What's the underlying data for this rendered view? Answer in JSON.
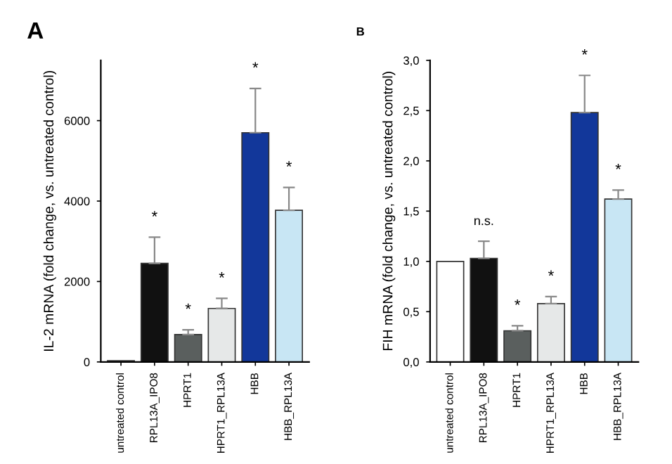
{
  "chart_data": [
    {
      "type": "bar",
      "title": "A",
      "ylabel": "IL-2 mRNA (fold change, vs. untreated control)",
      "categories": [
        "untreated control",
        "RPL13A_IPO8",
        "HPRT1",
        "HPRT1_RPL13A",
        "HBB",
        "HBB_RPL13A"
      ],
      "values": [
        30,
        2450,
        680,
        1330,
        5700,
        3770
      ],
      "colors": [
        "#8a8a8a",
        "#111111",
        "#5a5f5e",
        "#e6e8e8",
        "#12379a",
        "#c8e6f4"
      ],
      "errors": [
        null,
        [
          2450,
          3100
        ],
        [
          680,
          800
        ],
        [
          1330,
          1580
        ],
        [
          5700,
          6800
        ],
        [
          3770,
          4340
        ]
      ],
      "ylim": [
        0,
        7500
      ],
      "yticks": [
        0,
        2000,
        4000,
        6000
      ],
      "grid": false,
      "annotations": [
        {
          "text": "*",
          "x": "RPL13A_IPO8",
          "y": 3100
        },
        {
          "text": "*",
          "x": "HPRT1",
          "y": 800
        },
        {
          "text": "*",
          "x": "HPRT1_RPL13A",
          "y": 1580
        },
        {
          "text": "*",
          "x": "HBB",
          "y": 6800
        },
        {
          "text": "*",
          "x": "HBB_RPL13A",
          "y": 4340
        }
      ]
    },
    {
      "type": "bar",
      "title": "B",
      "ylabel": "FIH mRNA (fold change, vs. untreated control)",
      "categories": [
        "untreated control",
        "RPL13A_IPO8",
        "HPRT1",
        "HPRT1_RPL13A",
        "HBB",
        "HBB_RPL13A"
      ],
      "values": [
        1.0,
        1.03,
        0.31,
        0.58,
        2.48,
        1.62
      ],
      "colors": [
        "#ffffff",
        "#111111",
        "#5a5f5e",
        "#e6e8e8",
        "#12379a",
        "#c8e6f4"
      ],
      "errors": [
        null,
        [
          1.03,
          1.2
        ],
        [
          0.31,
          0.36
        ],
        [
          0.58,
          0.65
        ],
        [
          2.48,
          2.85
        ],
        [
          1.62,
          1.71
        ]
      ],
      "ylim": [
        0,
        3.0
      ],
      "yticks": [
        {
          "value": 0,
          "label": "0,0"
        },
        {
          "value": 0.5,
          "label": "0,5"
        },
        {
          "value": 1.0,
          "label": "1,0"
        },
        {
          "value": 1.5,
          "label": "1,5"
        },
        {
          "value": 2.0,
          "label": "2,0"
        },
        {
          "value": 2.5,
          "label": "2,5"
        },
        {
          "value": 3.0,
          "label": "3,0"
        }
      ],
      "grid": false,
      "annotations": [
        {
          "text": "n.s.",
          "x": "RPL13A_IPO8",
          "y": 1.2
        },
        {
          "text": "*",
          "x": "HPRT1",
          "y": 0.36
        },
        {
          "text": "*",
          "x": "HPRT1_RPL13A",
          "y": 0.65
        },
        {
          "text": "*",
          "x": "HBB",
          "y": 2.85
        },
        {
          "text": "*",
          "x": "HBB_RPL13A",
          "y": 1.71
        }
      ]
    }
  ]
}
